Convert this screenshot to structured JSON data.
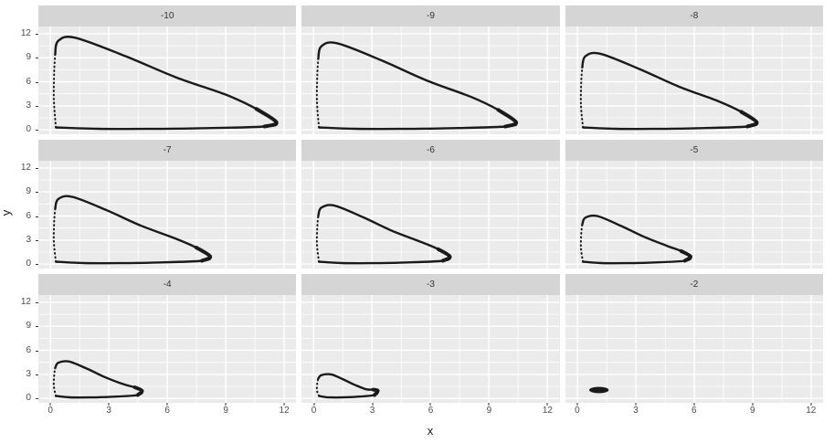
{
  "figure": {
    "x_title": "x",
    "y_title": "y"
  },
  "colors": {
    "background": "#FFFFFF",
    "panel_bg": "#EBEBEB",
    "strip_bg": "#D5D5D5",
    "strip_text": "#333333",
    "grid_line": "#FFFFFF",
    "axis_text": "#4D4D4D",
    "tick_mark": "#333333",
    "curve": "#1A1A1A"
  },
  "axes": {
    "x_tick_values": [
      0,
      3,
      6,
      9,
      12
    ],
    "x_tick_labels": [
      "0",
      "3",
      "6",
      "9",
      "12"
    ],
    "y_tick_values": [
      12,
      9,
      6,
      3,
      0
    ],
    "y_tick_labels": [
      "12",
      "9",
      "6",
      "3",
      "0"
    ],
    "x_minor": [
      1.5,
      4.5,
      7.5,
      10.5
    ],
    "y_minor": [
      1.5,
      4.5,
      7.5,
      10.5
    ],
    "x_domain": [
      -0.62,
      12.62
    ],
    "y_domain": [
      -0.55,
      12.9
    ]
  },
  "chart_data": {
    "type": "line",
    "layout": "facet_grid_3x3",
    "title": "",
    "xlabel": "x",
    "ylabel": "y",
    "x_range_shown": [
      0,
      12
    ],
    "y_range_shown": [
      0,
      12
    ],
    "facet_labels": [
      "-10",
      "-9",
      "-8",
      "-7",
      "-6",
      "-5",
      "-4",
      "-3",
      "-2"
    ],
    "panels": [
      {
        "label": "-10",
        "kind": "cycle",
        "x_max": 11.6,
        "y_max": 11.5,
        "points": [
          [
            0.24,
            9.43
          ],
          [
            0.4,
            11.1
          ],
          [
            1.27,
            11.5
          ],
          [
            3.85,
            9.2
          ],
          [
            6.44,
            6.56
          ],
          [
            9.02,
            4.37
          ],
          [
            10.57,
            2.62
          ],
          [
            11.6,
            0.95
          ],
          [
            10.98,
            0.42
          ],
          [
            7.66,
            0.2
          ],
          [
            4.87,
            0.12
          ],
          [
            2.44,
            0.13
          ],
          [
            0.28,
            0.3
          ]
        ],
        "dotted": [
          [
            0.28,
            0.3
          ],
          [
            0.175,
            3.8
          ],
          [
            0.19,
            7.13
          ],
          [
            0.24,
            9.43
          ]
        ]
      },
      {
        "label": "-9",
        "kind": "cycle",
        "x_max": 10.4,
        "y_max": 10.8,
        "points": [
          [
            0.24,
            8.86
          ],
          [
            0.4,
            10.42
          ],
          [
            1.22,
            10.8
          ],
          [
            3.52,
            8.64
          ],
          [
            5.81,
            6.16
          ],
          [
            8.1,
            4.1
          ],
          [
            9.48,
            2.49
          ],
          [
            10.4,
            0.95
          ],
          [
            9.85,
            0.42
          ],
          [
            6.86,
            0.2
          ],
          [
            4.37,
            0.12
          ],
          [
            2.18,
            0.13
          ],
          [
            0.28,
            0.3
          ]
        ],
        "dotted": [
          [
            0.28,
            0.3
          ],
          [
            0.175,
            3.56
          ],
          [
            0.19,
            6.7
          ],
          [
            0.24,
            8.86
          ]
        ]
      },
      {
        "label": "-8",
        "kind": "cycle",
        "x_max": 9.2,
        "y_max": 9.5,
        "points": [
          [
            0.24,
            7.79
          ],
          [
            0.4,
            9.17
          ],
          [
            1.16,
            9.5
          ],
          [
            3.17,
            7.6
          ],
          [
            5.18,
            5.42
          ],
          [
            7.19,
            3.61
          ],
          [
            8.4,
            2.26
          ],
          [
            9.2,
            0.95
          ],
          [
            8.72,
            0.42
          ],
          [
            6.07,
            0.2
          ],
          [
            3.86,
            0.12
          ],
          [
            1.93,
            0.13
          ],
          [
            0.28,
            0.3
          ]
        ],
        "dotted": [
          [
            0.28,
            0.3
          ],
          [
            0.175,
            3.14
          ],
          [
            0.19,
            5.89
          ],
          [
            0.24,
            7.79
          ]
        ]
      },
      {
        "label": "-7",
        "kind": "cycle",
        "x_max": 8.2,
        "y_max": 8.4,
        "points": [
          [
            0.24,
            6.89
          ],
          [
            0.4,
            8.11
          ],
          [
            1.12,
            8.4
          ],
          [
            2.89,
            6.72
          ],
          [
            4.66,
            4.79
          ],
          [
            6.43,
            3.19
          ],
          [
            7.49,
            2.06
          ],
          [
            8.2,
            0.95
          ],
          [
            7.78,
            0.42
          ],
          [
            5.41,
            0.2
          ],
          [
            3.44,
            0.12
          ],
          [
            1.72,
            0.13
          ],
          [
            0.28,
            0.3
          ]
        ],
        "dotted": [
          [
            0.28,
            0.3
          ],
          [
            0.175,
            2.77
          ],
          [
            0.19,
            5.21
          ],
          [
            0.24,
            6.89
          ]
        ]
      },
      {
        "label": "-6",
        "kind": "cycle",
        "x_max": 7.0,
        "y_max": 7.3,
        "points": [
          [
            0.24,
            5.99
          ],
          [
            0.4,
            7.04
          ],
          [
            1.07,
            7.3
          ],
          [
            2.55,
            5.84
          ],
          [
            4.03,
            4.16
          ],
          [
            5.52,
            2.77
          ],
          [
            6.41,
            1.86
          ],
          [
            7.0,
            0.95
          ],
          [
            6.64,
            0.42
          ],
          [
            4.62,
            0.2
          ],
          [
            2.94,
            0.12
          ],
          [
            1.47,
            0.13
          ],
          [
            0.28,
            0.3
          ]
        ],
        "dotted": [
          [
            0.28,
            0.3
          ],
          [
            0.175,
            2.41
          ],
          [
            0.19,
            4.53
          ],
          [
            0.24,
            5.99
          ]
        ]
      },
      {
        "label": "-5",
        "kind": "cycle",
        "x_max": 5.8,
        "y_max": 6.0,
        "points": [
          [
            0.24,
            4.92
          ],
          [
            0.4,
            5.79
          ],
          [
            1.01,
            6.0
          ],
          [
            2.21,
            4.8
          ],
          [
            3.41,
            3.42
          ],
          [
            4.6,
            2.28
          ],
          [
            5.32,
            1.63
          ],
          [
            5.8,
            0.95
          ],
          [
            5.51,
            0.42
          ],
          [
            3.83,
            0.2
          ],
          [
            2.44,
            0.12
          ],
          [
            1.22,
            0.13
          ],
          [
            0.28,
            0.3
          ]
        ],
        "dotted": [
          [
            0.28,
            0.3
          ],
          [
            0.175,
            1.98
          ],
          [
            0.19,
            3.72
          ],
          [
            0.24,
            4.92
          ]
        ]
      },
      {
        "label": "-4",
        "kind": "cycle",
        "x_max": 4.7,
        "y_max": 4.6,
        "points": [
          [
            0.24,
            3.77
          ],
          [
            0.4,
            4.44
          ],
          [
            0.96,
            4.6
          ],
          [
            1.9,
            3.68
          ],
          [
            2.83,
            2.62
          ],
          [
            3.77,
            1.75
          ],
          [
            4.33,
            1.38
          ],
          [
            4.7,
            0.95
          ],
          [
            4.48,
            0.42
          ],
          [
            3.1,
            0.2
          ],
          [
            1.97,
            0.12
          ],
          [
            0.99,
            0.13
          ],
          [
            0.28,
            0.3
          ]
        ],
        "dotted": [
          [
            0.28,
            0.3
          ],
          [
            0.175,
            1.52
          ],
          [
            0.19,
            2.85
          ],
          [
            0.24,
            3.77
          ]
        ]
      },
      {
        "label": "-3",
        "kind": "cycle",
        "x_max": 3.3,
        "y_max": 3.0,
        "points": [
          [
            0.24,
            2.46
          ],
          [
            0.4,
            2.9
          ],
          [
            0.9,
            3.0
          ],
          [
            1.5,
            2.4
          ],
          [
            2.1,
            1.71
          ],
          [
            2.7,
            1.14
          ],
          [
            3.06,
            1.09
          ],
          [
            3.3,
            0.95
          ],
          [
            3.13,
            0.42
          ],
          [
            2.18,
            0.2
          ],
          [
            1.39,
            0.12
          ],
          [
            0.69,
            0.15
          ],
          [
            0.28,
            0.3
          ]
        ],
        "dotted": [
          [
            0.28,
            0.3
          ],
          [
            0.175,
            0.99
          ],
          [
            0.19,
            1.86
          ],
          [
            0.24,
            2.46
          ]
        ]
      },
      {
        "label": "-2",
        "kind": "point",
        "center": [
          1.1,
          1.05
        ],
        "rx": 0.5,
        "ry": 0.4
      }
    ]
  }
}
